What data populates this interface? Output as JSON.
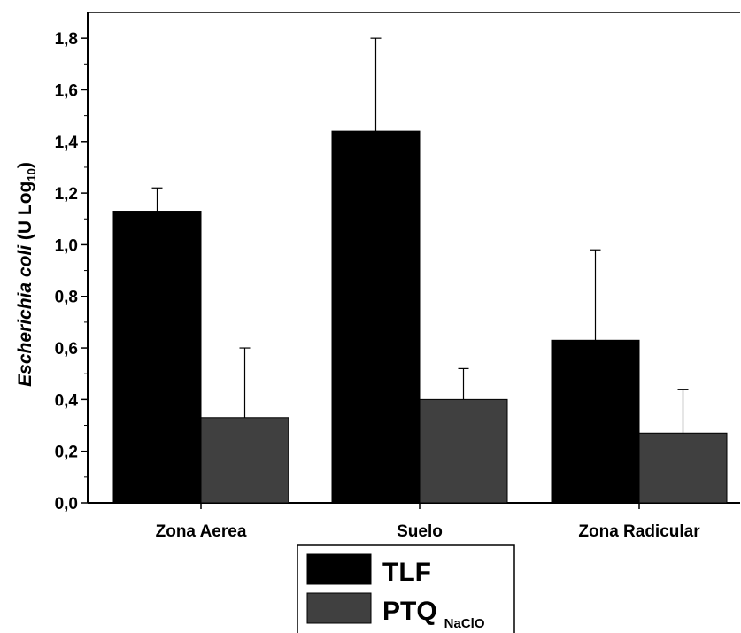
{
  "chart_data": {
    "type": "bar",
    "categories": [
      "Zona Aerea",
      "Suelo",
      "Zona Radicular"
    ],
    "series": [
      {
        "name": "TLF",
        "values": [
          1.13,
          1.44,
          0.63
        ],
        "error": [
          0.09,
          0.36,
          0.35
        ],
        "color": "#000000"
      },
      {
        "name": "PTQ",
        "name_subscript": "NaClO",
        "values": [
          0.33,
          0.4,
          0.27
        ],
        "error": [
          0.27,
          0.12,
          0.17
        ],
        "color": "#404040"
      }
    ],
    "ylabel": {
      "italic": "Escherichia coli",
      "rest": " (U Log",
      "subscript": "10",
      "close": ")"
    },
    "ylim": [
      0,
      1.9
    ],
    "yticks": [
      0.0,
      0.2,
      0.4,
      0.6,
      0.8,
      1.0,
      1.2,
      1.4,
      1.6,
      1.8
    ],
    "ytick_labels": [
      "0,0",
      "0,2",
      "0,4",
      "0,6",
      "0,8",
      "1,0",
      "1,2",
      "1,4",
      "1,6",
      "1,8"
    ],
    "grid": false,
    "legend_position": "bottom-center"
  }
}
